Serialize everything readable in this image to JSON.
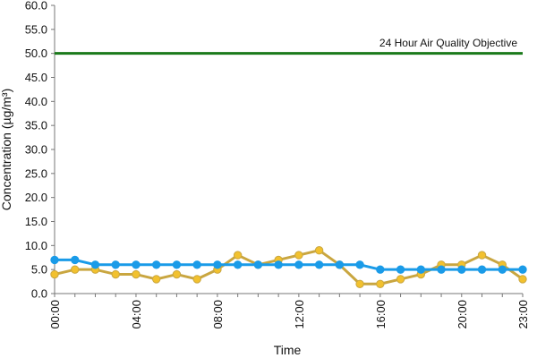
{
  "chart_data": {
    "type": "line",
    "title": "",
    "xlabel": "Time",
    "ylabel": "Concentration (µg/m³)",
    "ylim": [
      0,
      60
    ],
    "y_ticks": [
      0,
      5,
      10,
      15,
      20,
      25,
      30,
      35,
      40,
      45,
      50,
      55,
      60
    ],
    "y_tick_labels": [
      "0.0",
      "5.0",
      "10.0",
      "15.0",
      "20.0",
      "25.0",
      "30.0",
      "35.0",
      "40.0",
      "45.0",
      "50.0",
      "55.0",
      "60.0"
    ],
    "x_hours": [
      0,
      1,
      2,
      3,
      4,
      5,
      6,
      7,
      8,
      9,
      10,
      11,
      12,
      13,
      14,
      15,
      16,
      17,
      18,
      19,
      20,
      21,
      22,
      23
    ],
    "x_ticks": [
      0,
      4,
      8,
      12,
      16,
      20,
      23
    ],
    "x_tick_labels": [
      "00:00",
      "04:00",
      "08:00",
      "12:00",
      "16:00",
      "20:00",
      "23:00"
    ],
    "grid": false,
    "series": [
      {
        "color": "#f2c12e",
        "line_color": "#c9a640",
        "values": [
          4,
          5,
          5,
          4,
          4,
          3,
          4,
          3,
          5,
          8,
          6,
          7,
          8,
          9,
          6,
          2,
          2,
          3,
          4,
          6,
          6,
          8,
          6,
          3
        ]
      },
      {
        "color": "#1a9be8",
        "line_color": "#1a9be8",
        "values": [
          7,
          7,
          6,
          6,
          6,
          6,
          6,
          6,
          6,
          6,
          6,
          6,
          6,
          6,
          6,
          6,
          5,
          5,
          5,
          5,
          5,
          5,
          5,
          5
        ]
      }
    ],
    "reference_line": {
      "label": "24 Hour Air Quality Objective",
      "value": 50,
      "color": "#1a7a1a"
    }
  }
}
